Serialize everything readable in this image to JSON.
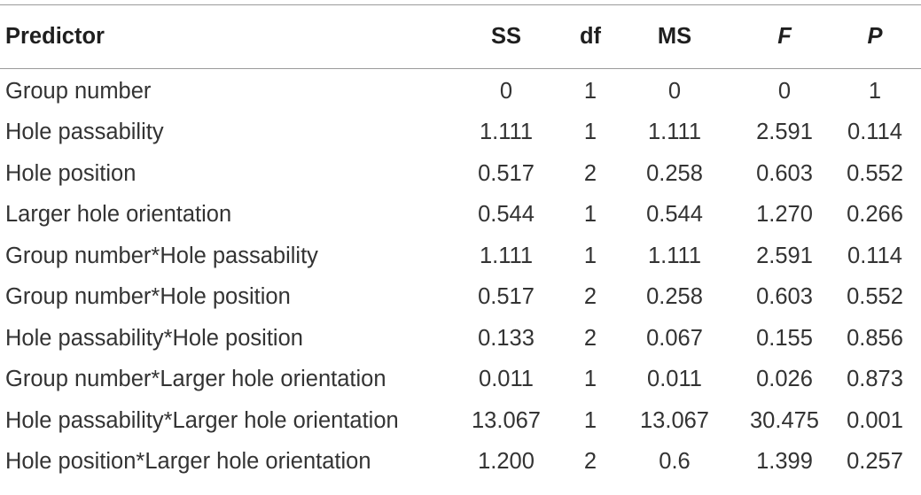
{
  "table": {
    "headers": {
      "predictor": "Predictor",
      "ss": "SS",
      "df": "df",
      "ms": "MS",
      "f": "F",
      "p": "P"
    },
    "rows": [
      {
        "predictor": "Group number",
        "ss": "0",
        "df": "1",
        "ms": "0",
        "f": "0",
        "p": "1"
      },
      {
        "predictor": "Hole passability",
        "ss": "1.111",
        "df": "1",
        "ms": "1.111",
        "f": "2.591",
        "p": "0.114"
      },
      {
        "predictor": "Hole position",
        "ss": "0.517",
        "df": "2",
        "ms": "0.258",
        "f": "0.603",
        "p": "0.552"
      },
      {
        "predictor": "Larger hole orientation",
        "ss": "0.544",
        "df": "1",
        "ms": "0.544",
        "f": "1.270",
        "p": "0.266"
      },
      {
        "predictor": "Group number*Hole passability",
        "ss": "1.111",
        "df": "1",
        "ms": "1.111",
        "f": "2.591",
        "p": "0.114"
      },
      {
        "predictor": "Group number*Hole position",
        "ss": "0.517",
        "df": "2",
        "ms": "0.258",
        "f": "0.603",
        "p": "0.552"
      },
      {
        "predictor": "Hole passability*Hole position",
        "ss": "0.133",
        "df": "2",
        "ms": "0.067",
        "f": "0.155",
        "p": "0.856"
      },
      {
        "predictor": "Group number*Larger hole orientation",
        "ss": "0.011",
        "df": "1",
        "ms": "0.011",
        "f": "0.026",
        "p": "0.873"
      },
      {
        "predictor": "Hole passability*Larger hole orientation",
        "ss": "13.067",
        "df": "1",
        "ms": "13.067",
        "f": "30.475",
        "p": "0.001"
      },
      {
        "predictor": "Hole position*Larger hole orientation",
        "ss": "1.200",
        "df": "2",
        "ms": "0.6",
        "f": "1.399",
        "p": "0.257"
      }
    ]
  }
}
